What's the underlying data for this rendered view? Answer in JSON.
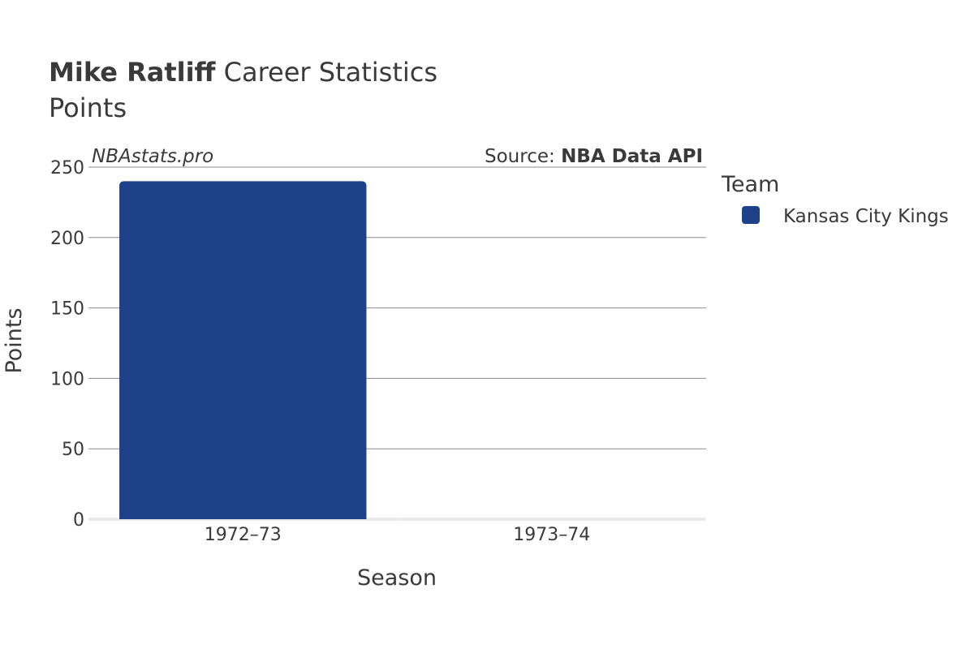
{
  "header": {
    "player_name": "Mike Ratliff",
    "title_rest": "Career Statistics",
    "subtitle": "Points"
  },
  "watermark": "NBAstats.pro",
  "source": {
    "prefix": "Source: ",
    "name": "NBA Data API"
  },
  "legend": {
    "title": "Team",
    "items": [
      {
        "label": "Kansas City Kings",
        "color": "#1d428a"
      }
    ]
  },
  "chart_data": {
    "type": "bar",
    "title": "Mike Ratliff Career Statistics",
    "subtitle": "Points",
    "categories": [
      "1972–73",
      "1973–74"
    ],
    "series": [
      {
        "name": "Kansas City Kings",
        "color": "#1d428a",
        "values": [
          240,
          0
        ]
      }
    ],
    "xlabel": "Season",
    "ylabel": "Points",
    "ylim": [
      0,
      250
    ],
    "yticks": [
      0,
      50,
      100,
      150,
      200,
      250
    ],
    "grid": true,
    "legend_position": "right"
  }
}
